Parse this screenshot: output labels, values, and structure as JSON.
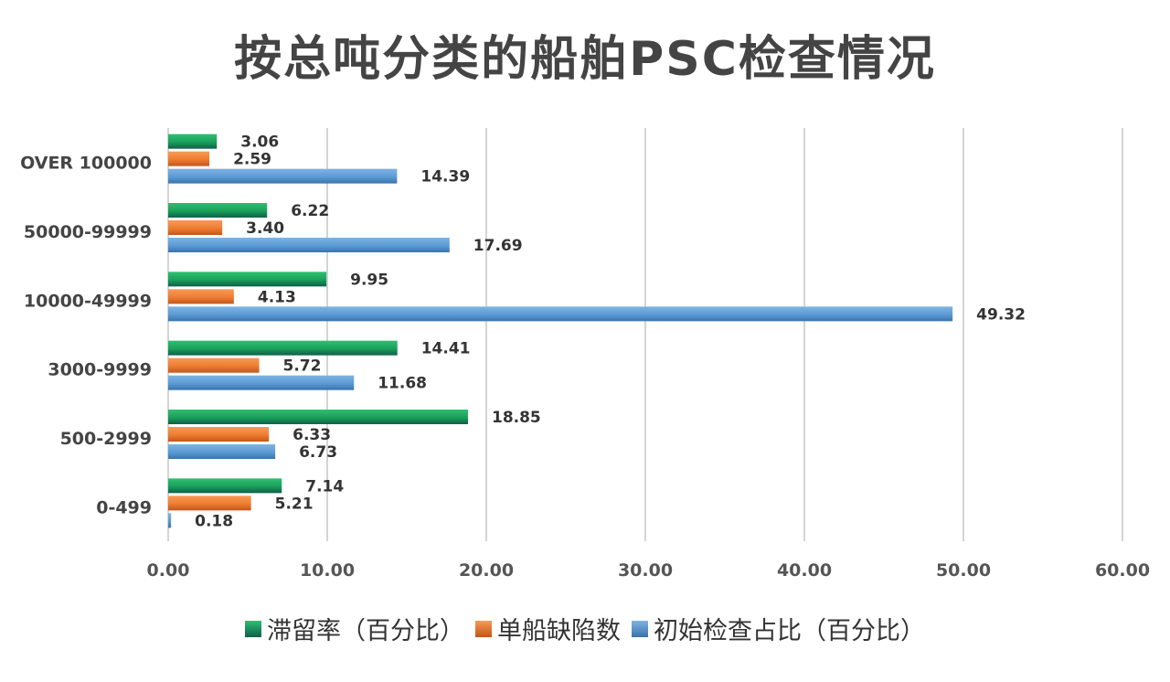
{
  "chart_data": {
    "type": "bar",
    "orientation": "horizontal",
    "title": "按总吨分类的船舶PSC检查情况",
    "categories": [
      "0-499",
      "500-2999",
      "3000-9999",
      "10000-49999",
      "50000-99999",
      "OVER 100000"
    ],
    "series": [
      {
        "name": "滞留率（百分比）",
        "color": "#1aa05a",
        "values": [
          7.14,
          18.85,
          14.41,
          9.95,
          6.22,
          3.06
        ]
      },
      {
        "name": "单船缺陷数",
        "color": "#ee7d31",
        "values": [
          5.21,
          6.33,
          5.72,
          4.13,
          3.4,
          2.59
        ]
      },
      {
        "name": "初始检查占比（百分比）",
        "color": "#5b9bd5",
        "values": [
          0.18,
          6.73,
          11.68,
          49.32,
          17.69,
          14.39
        ]
      }
    ],
    "xlim": [
      0,
      60
    ],
    "x_ticks": [
      "0.00",
      "10.00",
      "20.00",
      "30.00",
      "40.00",
      "50.00",
      "60.00"
    ],
    "grid": true,
    "data_labels": true,
    "legend_position": "bottom"
  }
}
